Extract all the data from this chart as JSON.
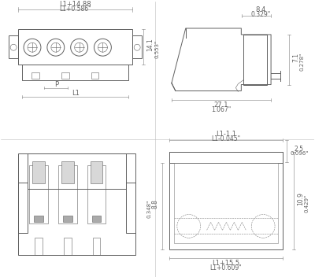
{
  "bg_color": "#ffffff",
  "line_color": "#606060",
  "dim_color": "#808080",
  "text_color": "#606060",
  "top_left": {
    "dim_top": "L1+14.88",
    "dim_top2": "L1+0.586\"",
    "dim_right": "14.1",
    "dim_right2": "0.553\"",
    "label_p": "P",
    "label_l1": "L1"
  },
  "top_right": {
    "dim_top": "8.4",
    "dim_top2": "0.329\"",
    "dim_bottom": "27.1",
    "dim_bottom2": "1.067\"",
    "dim_right": "7.1",
    "dim_right2": "0.278\""
  },
  "bottom_right": {
    "dim_top": "L1-1.1",
    "dim_top2": "L1-0.045\"",
    "dim_tr": "2.5",
    "dim_tr2": "0.096\"",
    "dim_bottom": "L1+15.5",
    "dim_bottom2": "L1+0.609\"",
    "dim_left": "8.8",
    "dim_left2": "0.348\"",
    "dim_right": "10.9",
    "dim_right2": "0.429\""
  }
}
